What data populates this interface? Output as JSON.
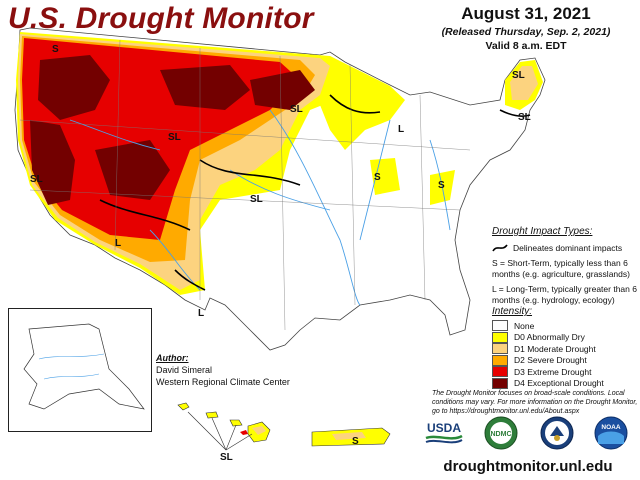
{
  "header": {
    "title": "U.S. Drought Monitor",
    "date": "August 31, 2021",
    "released": "(Released Thursday, Sep. 2, 2021)",
    "valid": "Valid 8 a.m. EDT"
  },
  "map_labels": [
    "S",
    "SL",
    "SL",
    "SL",
    "L",
    "SL",
    "SL",
    "SL",
    "L",
    "S",
    "S",
    "L",
    "SL",
    "S",
    "S"
  ],
  "impact_types": {
    "heading": "Drought Impact Types:",
    "line_desc": "Delineates dominant impacts",
    "short_term": "S = Short-Term, typically less than 6 months (e.g. agriculture, grasslands)",
    "long_term": "L = Long-Term, typically greater than 6 months (e.g. hydrology, ecology)"
  },
  "intensity": {
    "heading": "Intensity:",
    "levels": [
      {
        "label": "None",
        "color": "#ffffff"
      },
      {
        "label": "D0 Abnormally Dry",
        "color": "#ffff00"
      },
      {
        "label": "D1 Moderate Drought",
        "color": "#fcd37f"
      },
      {
        "label": "D2 Severe Drought",
        "color": "#ffaa00"
      },
      {
        "label": "D3 Extreme Drought",
        "color": "#e60000"
      },
      {
        "label": "D4 Exceptional Drought",
        "color": "#730000"
      }
    ]
  },
  "author": {
    "heading": "Author:",
    "name": "David Simeral",
    "org": "Western Regional Climate Center"
  },
  "note": "The Drought Monitor focuses on broad-scale conditions. Local conditions may vary. For more information on the Drought Monitor, go to https://droughtmonitor.unl.edu/About.aspx",
  "logos": {
    "usda": "USDA",
    "ndmc": "NDMC",
    "noaa": "NOAA"
  },
  "url": "droughtmonitor.unl.edu"
}
